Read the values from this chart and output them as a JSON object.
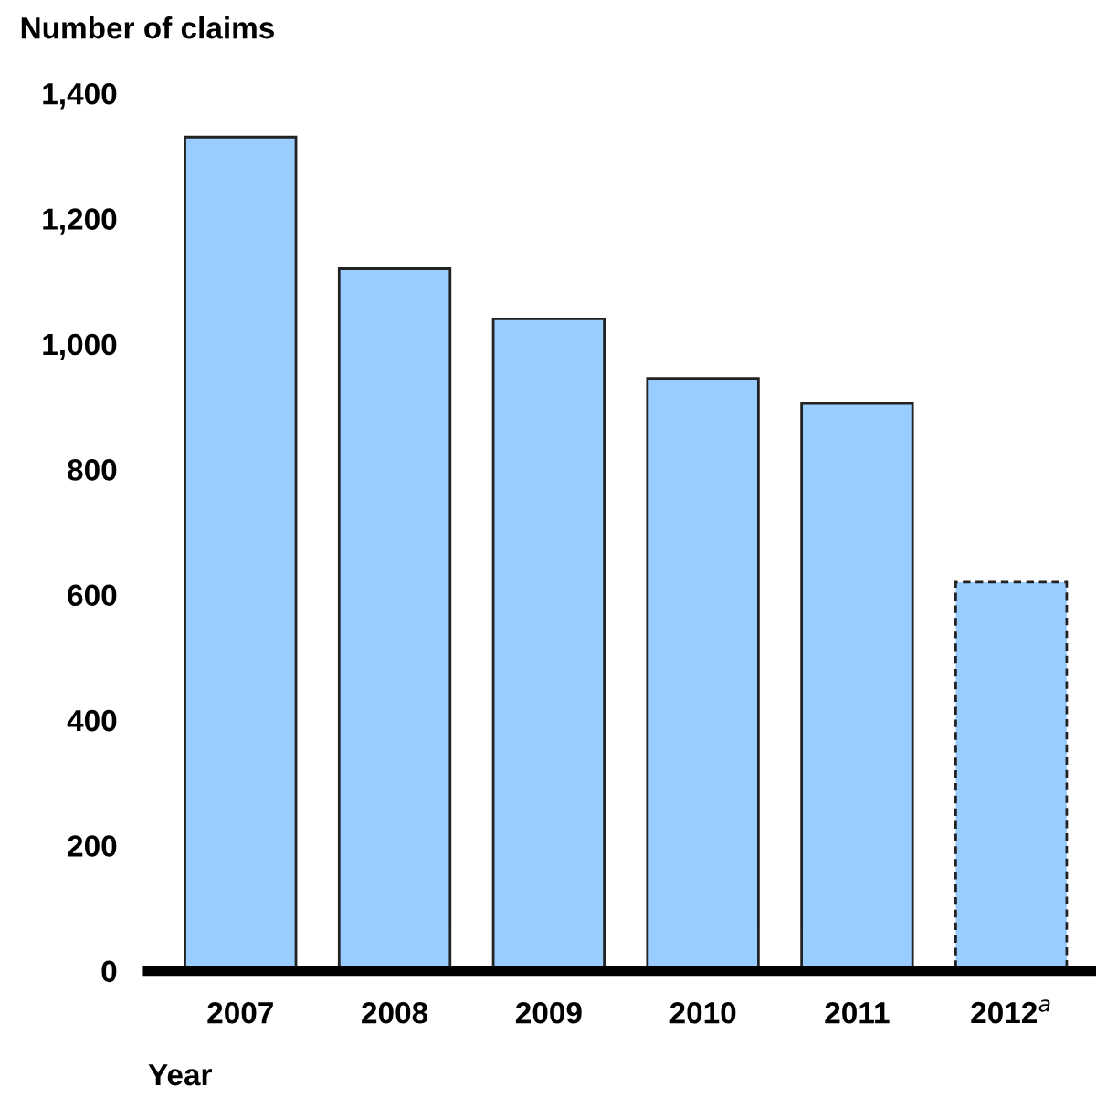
{
  "chart_data": {
    "type": "bar",
    "ylabel": "Number of claims",
    "xlabel": "Year",
    "categories": [
      "2007",
      "2008",
      "2009",
      "2010",
      "2011",
      "2012$^{a}$"
    ],
    "series": [
      {
        "color": "#99ccff",
        "line_style": "solid",
        "values": [
          1330,
          1120,
          1040,
          945,
          905,
          null
        ]
      },
      {
        "color": "#99ccff",
        "line_style": "dashed",
        "values": [
          null,
          null,
          null,
          null,
          null,
          620
        ]
      }
    ],
    "ylim": [
      0,
      1400
    ],
    "yticks": [
      0,
      {
        "value": 200,
        "label": "200"
      },
      {
        "value": 400,
        "label": "400"
      },
      {
        "value": 600,
        "label": "600"
      },
      {
        "value": 800,
        "label": "800"
      },
      {
        "value": 1000,
        "label": "1,000"
      },
      {
        "value": 1200,
        "label": "1,200"
      },
      {
        "value": 1400,
        "label": "1,400"
      }
    ],
    "grid": false,
    "legend": false
  }
}
